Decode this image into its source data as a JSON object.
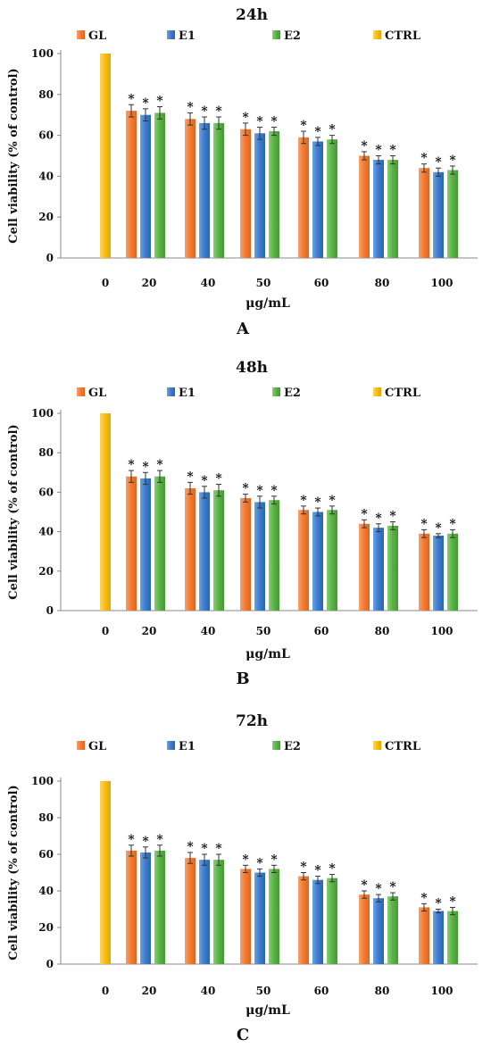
{
  "figure": {
    "panels": [
      {
        "title": "24h",
        "panel_label": "A",
        "xlabel": "μg/mL",
        "ylabel": "Cell viability (% of control)",
        "yticks": [
          "0",
          "20",
          "40",
          "60",
          "80",
          "100"
        ],
        "legend": [
          "GL",
          "E1",
          "E2",
          "CTRL"
        ]
      },
      {
        "title": "48h",
        "panel_label": "B",
        "xlabel": "μg/mL",
        "ylabel": "Cell viability (% of control)",
        "yticks": [
          "0",
          "20",
          "40",
          "60",
          "80",
          "100"
        ],
        "legend": [
          "GL",
          "E1",
          "E2",
          "CTRL"
        ]
      },
      {
        "title": "72h",
        "panel_label": "C",
        "xlabel": "μg/mL",
        "ylabel": "Cell viability (% of control)",
        "yticks": [
          "0",
          "20",
          "40",
          "60",
          "80",
          "100"
        ],
        "legend": [
          "GL",
          "E1",
          "E2",
          "CTRL"
        ]
      }
    ]
  },
  "colors": {
    "GL": "#f37d36",
    "E1": "#3f7fd0",
    "E2": "#5cb548",
    "CTRL": "#f7be16",
    "axis": "#888888",
    "text": "#111111",
    "errorbar": "#333333"
  },
  "chart_data": [
    {
      "type": "bar",
      "title": "24h",
      "xlabel": "μg/mL",
      "ylabel": "Cell viability (% of control)",
      "ylim": [
        0,
        100
      ],
      "categories": [
        "0",
        "20",
        "40",
        "50",
        "60",
        "80",
        "100"
      ],
      "series": [
        {
          "name": "GL",
          "values": [
            null,
            72,
            68,
            63,
            59,
            50,
            44
          ],
          "errors": [
            null,
            3,
            3,
            3,
            3,
            2,
            2
          ]
        },
        {
          "name": "E1",
          "values": [
            null,
            70,
            66,
            61,
            57,
            48,
            42
          ],
          "errors": [
            null,
            3,
            3,
            3,
            2,
            2,
            2
          ]
        },
        {
          "name": "E2",
          "values": [
            null,
            71,
            66,
            62,
            58,
            48,
            43
          ],
          "errors": [
            null,
            3,
            3,
            2,
            2,
            2,
            2
          ]
        },
        {
          "name": "CTRL",
          "values": [
            100,
            null,
            null,
            null,
            null,
            null,
            null
          ],
          "errors": [
            null,
            null,
            null,
            null,
            null,
            null,
            null
          ]
        }
      ],
      "annotations": [
        "*"
      ],
      "legend_position": "top",
      "grid": false
    },
    {
      "type": "bar",
      "title": "48h",
      "xlabel": "μg/mL",
      "ylabel": "Cell viability (% of control)",
      "ylim": [
        0,
        100
      ],
      "categories": [
        "0",
        "20",
        "40",
        "50",
        "60",
        "80",
        "100"
      ],
      "series": [
        {
          "name": "GL",
          "values": [
            null,
            68,
            62,
            57,
            51,
            44,
            39
          ],
          "errors": [
            null,
            3,
            3,
            2,
            2,
            2,
            2
          ]
        },
        {
          "name": "E1",
          "values": [
            null,
            67,
            60,
            55,
            50,
            42,
            38
          ],
          "errors": [
            null,
            3,
            3,
            3,
            2,
            2,
            1
          ]
        },
        {
          "name": "E2",
          "values": [
            null,
            68,
            61,
            56,
            51,
            43,
            39
          ],
          "errors": [
            null,
            3,
            3,
            2,
            2,
            2,
            2
          ]
        },
        {
          "name": "CTRL",
          "values": [
            100,
            null,
            null,
            null,
            null,
            null,
            null
          ],
          "errors": [
            null,
            null,
            null,
            null,
            null,
            null,
            null
          ]
        }
      ],
      "annotations": [
        "*"
      ],
      "legend_position": "top",
      "grid": false
    },
    {
      "type": "bar",
      "title": "72h",
      "xlabel": "μg/mL",
      "ylabel": "Cell viability (% of control)",
      "ylim": [
        0,
        100
      ],
      "categories": [
        "0",
        "20",
        "40",
        "50",
        "60",
        "80",
        "100"
      ],
      "series": [
        {
          "name": "GL",
          "values": [
            null,
            62,
            58,
            52,
            48,
            38,
            31
          ],
          "errors": [
            null,
            3,
            3,
            2,
            2,
            2,
            2
          ]
        },
        {
          "name": "E1",
          "values": [
            null,
            61,
            57,
            50,
            46,
            36,
            29
          ],
          "errors": [
            null,
            3,
            3,
            2,
            2,
            2,
            1
          ]
        },
        {
          "name": "E2",
          "values": [
            null,
            62,
            57,
            52,
            47,
            37,
            29
          ],
          "errors": [
            null,
            3,
            3,
            2,
            2,
            2,
            2
          ]
        },
        {
          "name": "CTRL",
          "values": [
            100,
            null,
            null,
            null,
            null,
            null,
            null
          ],
          "errors": [
            null,
            null,
            null,
            null,
            null,
            null,
            null
          ]
        }
      ],
      "annotations": [
        "*"
      ],
      "legend_position": "top",
      "grid": false
    }
  ]
}
